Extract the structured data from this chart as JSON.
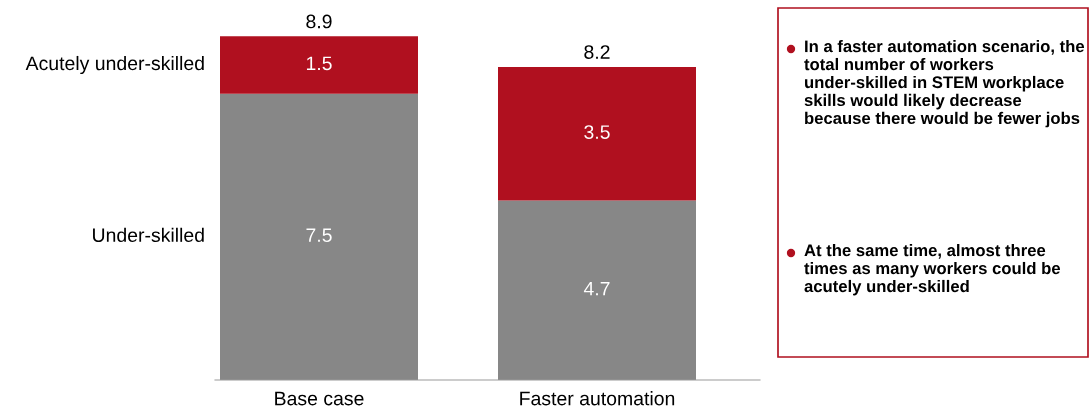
{
  "chart_data": {
    "type": "bar",
    "stacked": true,
    "categories": [
      "Base case",
      "Faster automation"
    ],
    "series": [
      {
        "name": "Under-skilled",
        "color": "#878787",
        "values": [
          7.5,
          4.7
        ]
      },
      {
        "name": "Acutely under-skilled",
        "color": "#b0101f",
        "values": [
          1.5,
          3.5
        ]
      }
    ],
    "data_labels": true,
    "totals": [
      "8.9",
      "8.2"
    ],
    "grid": false,
    "legend": false,
    "annotations": [
      "In a faster automation scenario, the total number of workers under-skilled in STEM workplace skills would likely decrease because there would be fewer jobs",
      "At the same time, almost three times as many workers could be acutely under-skilled"
    ]
  }
}
